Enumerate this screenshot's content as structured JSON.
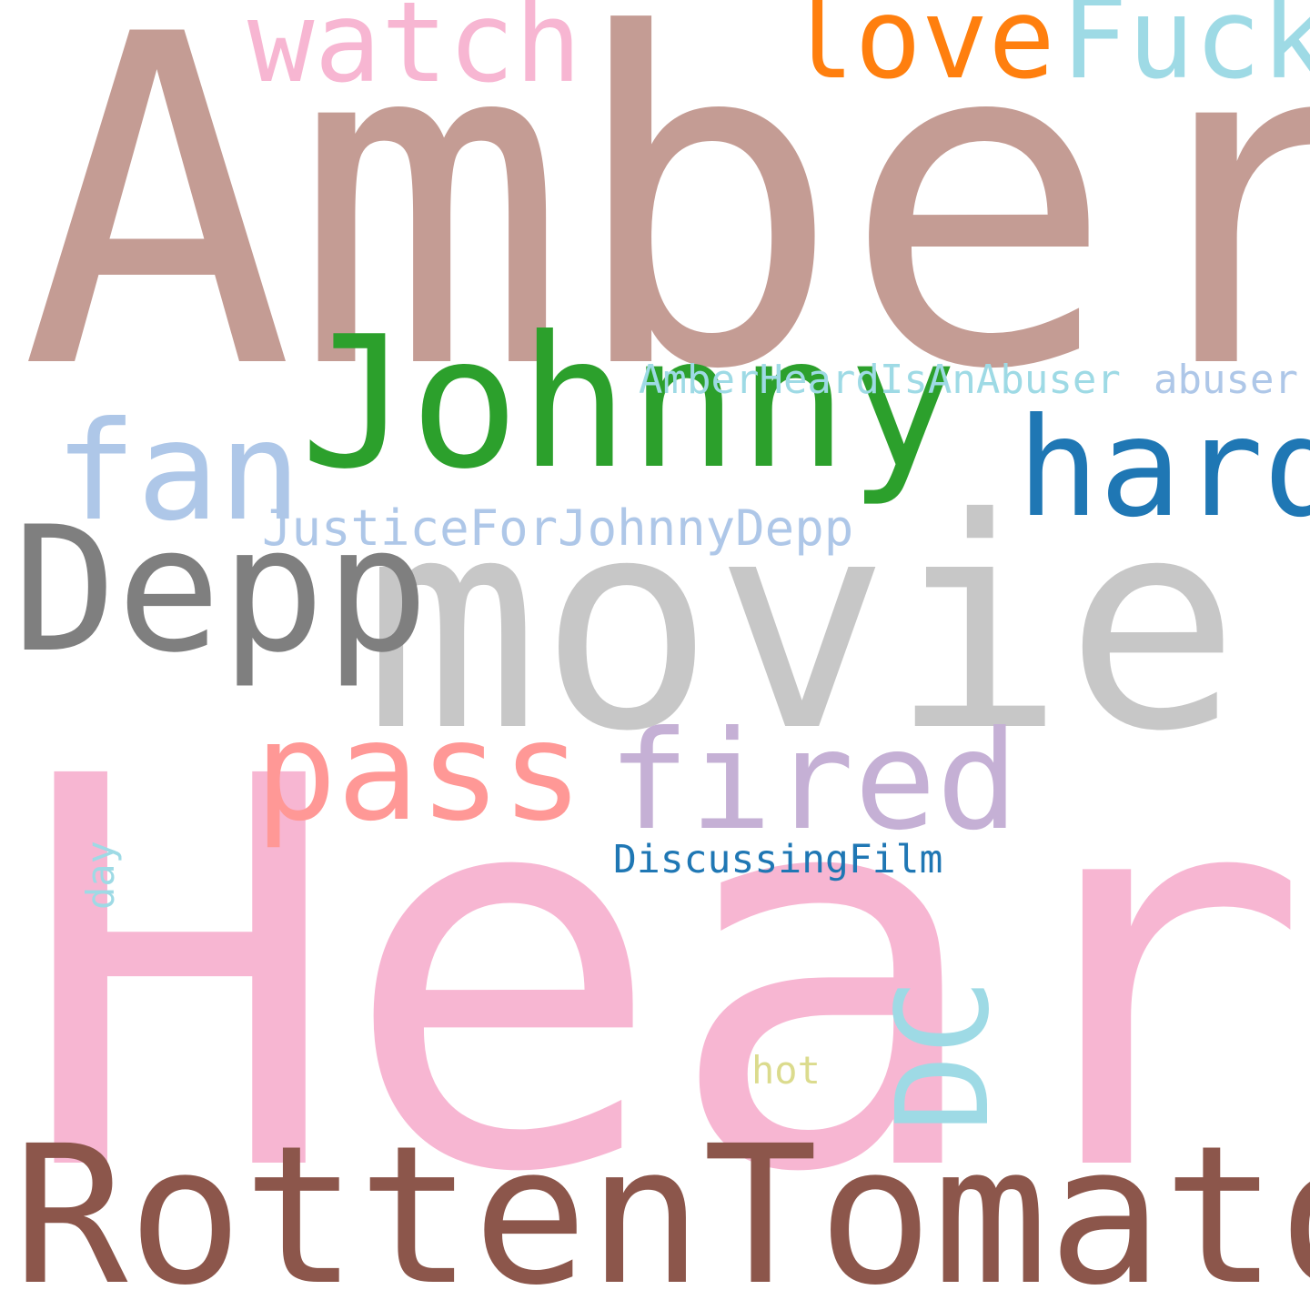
{
  "words": {
    "amber": {
      "text": "Amber",
      "color": "#c49c94"
    },
    "heard": {
      "text": "Heard",
      "color": "#f7b6d2"
    },
    "movie": {
      "text": "movie",
      "color": "#c7c7c7"
    },
    "rotten": {
      "text": "RottenTomatoes",
      "color": "#8c564b"
    },
    "johnny": {
      "text": "Johnny",
      "color": "#2ca02c"
    },
    "depp": {
      "text": "Depp",
      "color": "#7f7f7f"
    },
    "fan": {
      "text": "fan",
      "color": "#aec7e8"
    },
    "hard": {
      "text": "hard",
      "color": "#1f77b4"
    },
    "pass": {
      "text": "pass",
      "color": "#ff9896"
    },
    "fired": {
      "text": "fired",
      "color": "#c5b0d5"
    },
    "watch": {
      "text": "watch",
      "color": "#f7b6d2"
    },
    "love": {
      "text": "love",
      "color": "#ff7f0e"
    },
    "fuck": {
      "text": "Fuck",
      "color": "#9edae5"
    },
    "ahiaa": {
      "text": "AmberHeardIsAnAbuser",
      "color": "#9edae5"
    },
    "abuser": {
      "text": "abuser",
      "color": "#aec7e8"
    },
    "jfjd": {
      "text": "JusticeForJohnnyDepp",
      "color": "#aec7e8"
    },
    "discuss": {
      "text": "DiscussingFilm",
      "color": "#1f77b4"
    },
    "hot": {
      "text": "hot",
      "color": "#dbdb8d"
    },
    "day": {
      "text": "day",
      "color": "#9edae5"
    },
    "dc": {
      "text": "DC",
      "color": "#9edae5"
    }
  }
}
